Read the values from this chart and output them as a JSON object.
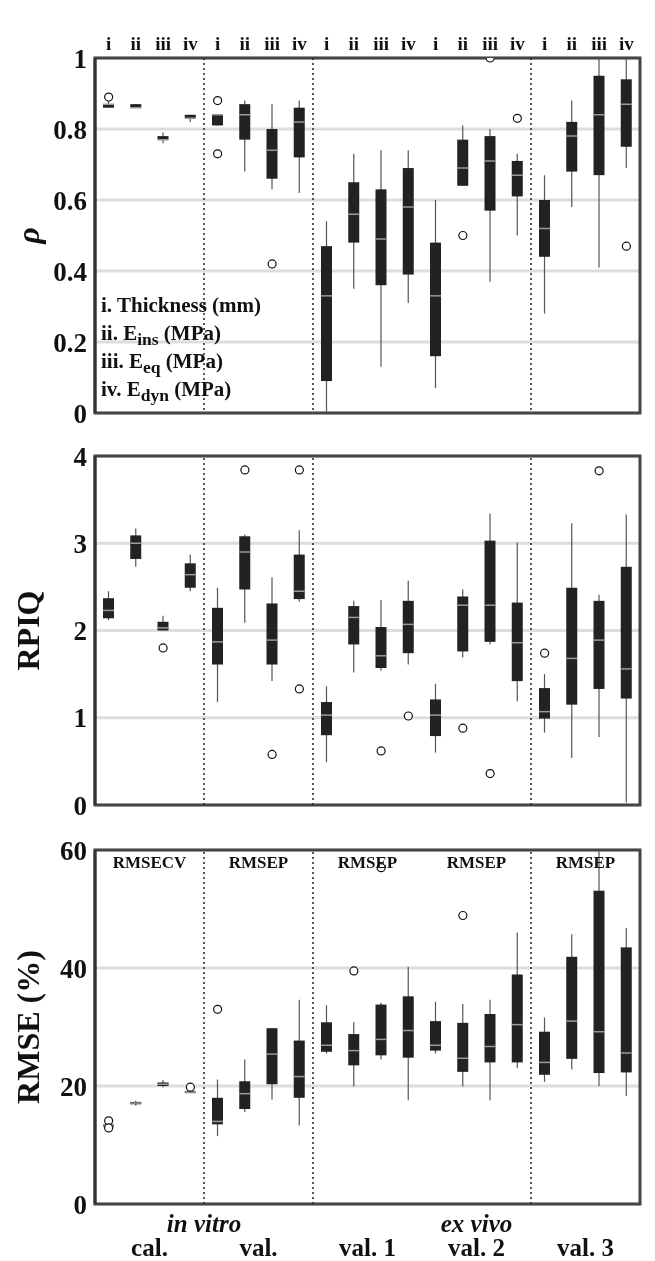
{
  "chart_data": [
    {
      "type": "box",
      "ylabel": "ρ",
      "color": "#222222",
      "grid": "y",
      "categories": [
        "i",
        "ii",
        "iii",
        "iv",
        "i",
        "ii",
        "iii",
        "iv",
        "i",
        "ii",
        "iii",
        "iv",
        "i",
        "ii",
        "iii",
        "iv",
        "i",
        "ii",
        "iii",
        "iv"
      ],
      "ylim": [
        0,
        1
      ],
      "yticks": [
        0,
        0.2,
        0.4,
        0.6,
        0.8,
        1
      ],
      "annotations": [
        "i. Thickness (mm)",
        "ii.  E$_{ins}$ (MPa)",
        "iii. E$_{eq}$ (MPa)",
        "iv. E$_{dyn}$ (MPa)"
      ],
      "boxes": [
        {
          "low": 0.86,
          "q1": 0.86,
          "median": 0.87,
          "q3": 0.87,
          "high": 0.88,
          "outliers": [
            0.89
          ]
        },
        {
          "low": 0.86,
          "q1": 0.86,
          "median": 0.86,
          "q3": 0.87,
          "high": 0.87
        },
        {
          "low": 0.76,
          "q1": 0.77,
          "median": 0.77,
          "q3": 0.78,
          "high": 0.79
        },
        {
          "low": 0.82,
          "q1": 0.83,
          "median": 0.83,
          "q3": 0.84,
          "high": 0.84
        },
        {
          "low": 0.81,
          "q1": 0.81,
          "median": 0.84,
          "q3": 0.84,
          "high": 0.84,
          "outliers": [
            0.88,
            0.73
          ]
        },
        {
          "low": 0.68,
          "q1": 0.77,
          "median": 0.84,
          "q3": 0.87,
          "high": 0.88
        },
        {
          "low": 0.63,
          "q1": 0.66,
          "median": 0.74,
          "q3": 0.8,
          "high": 0.87,
          "outliers": [
            0.42
          ]
        },
        {
          "low": 0.62,
          "q1": 0.72,
          "median": 0.82,
          "q3": 0.86,
          "high": 0.88
        },
        {
          "low": 0,
          "q1": 0.09,
          "median": 0.33,
          "q3": 0.47,
          "high": 0.54
        },
        {
          "low": 0.35,
          "q1": 0.48,
          "median": 0.56,
          "q3": 0.65,
          "high": 0.73
        },
        {
          "low": 0.13,
          "q1": 0.36,
          "median": 0.49,
          "q3": 0.63,
          "high": 0.74
        },
        {
          "low": 0.31,
          "q1": 0.39,
          "median": 0.58,
          "q3": 0.69,
          "high": 0.74
        },
        {
          "low": 0.07,
          "q1": 0.16,
          "median": 0.33,
          "q3": 0.48,
          "high": 0.6
        },
        {
          "low": 0.64,
          "q1": 0.64,
          "median": 0.69,
          "q3": 0.77,
          "high": 0.81,
          "outliers": [
            0.5
          ]
        },
        {
          "low": 0.37,
          "q1": 0.57,
          "median": 0.71,
          "q3": 0.78,
          "high": 0.8,
          "outliers": [
            1.0
          ]
        },
        {
          "low": 0.5,
          "q1": 0.61,
          "median": 0.67,
          "q3": 0.71,
          "high": 0.73,
          "outliers": [
            0.83
          ]
        },
        {
          "low": 0.28,
          "q1": 0.44,
          "median": 0.52,
          "q3": 0.6,
          "high": 0.67
        },
        {
          "low": 0.58,
          "q1": 0.68,
          "median": 0.78,
          "q3": 0.82,
          "high": 0.88
        },
        {
          "low": 0.41,
          "q1": 0.67,
          "median": 0.84,
          "q3": 0.95,
          "high": 1.0
        },
        {
          "low": 0.69,
          "q1": 0.75,
          "median": 0.87,
          "q3": 0.94,
          "high": 1.0,
          "outliers": [
            0.47
          ]
        }
      ]
    },
    {
      "type": "box",
      "ylabel": "RPIQ",
      "color": "#222222",
      "grid": "y",
      "categories": [
        null,
        null,
        null,
        null,
        null,
        null,
        null,
        null,
        null,
        null,
        null,
        null,
        null,
        null,
        null,
        null,
        null,
        null,
        null,
        null
      ],
      "ylim": [
        0,
        4
      ],
      "yticks": [
        0,
        1,
        2,
        3,
        4
      ],
      "boxes": [
        {
          "low": 2.12,
          "q1": 2.14,
          "median": 2.23,
          "q3": 2.37,
          "high": 2.45
        },
        {
          "low": 2.73,
          "q1": 2.82,
          "median": 3.0,
          "q3": 3.09,
          "high": 3.17
        },
        {
          "low": 2.0,
          "q1": 2.0,
          "median": 2.03,
          "q3": 2.1,
          "high": 2.17,
          "outliers": [
            1.8
          ]
        },
        {
          "low": 2.45,
          "q1": 2.49,
          "median": 2.64,
          "q3": 2.77,
          "high": 2.87
        },
        {
          "low": 1.18,
          "q1": 1.61,
          "median": 1.87,
          "q3": 2.26,
          "high": 2.49
        },
        {
          "low": 2.09,
          "q1": 2.47,
          "median": 2.9,
          "q3": 3.08,
          "high": 3.1,
          "outliers": [
            3.84
          ]
        },
        {
          "low": 1.42,
          "q1": 1.61,
          "median": 1.89,
          "q3": 2.31,
          "high": 2.61,
          "outliers": [
            0.58
          ]
        },
        {
          "low": 2.33,
          "q1": 2.36,
          "median": 2.45,
          "q3": 2.87,
          "high": 3.15,
          "outliers": [
            3.84,
            1.33
          ]
        },
        {
          "low": 0.49,
          "q1": 0.8,
          "median": 1.03,
          "q3": 1.18,
          "high": 1.36
        },
        {
          "low": 1.52,
          "q1": 1.84,
          "median": 2.15,
          "q3": 2.28,
          "high": 2.34
        },
        {
          "low": 1.54,
          "q1": 1.57,
          "median": 1.71,
          "q3": 2.04,
          "high": 2.35,
          "outliers": [
            0.62
          ]
        },
        {
          "low": 1.61,
          "q1": 1.74,
          "median": 2.07,
          "q3": 2.34,
          "high": 2.57,
          "outliers": [
            1.02
          ]
        },
        {
          "low": 0.6,
          "q1": 0.79,
          "median": 1.03,
          "q3": 1.21,
          "high": 1.39
        },
        {
          "low": 1.69,
          "q1": 1.76,
          "median": 2.29,
          "q3": 2.39,
          "high": 2.47,
          "outliers": [
            0.88
          ]
        },
        {
          "low": 1.84,
          "q1": 1.87,
          "median": 2.29,
          "q3": 3.03,
          "high": 3.34,
          "outliers": [
            0.36
          ]
        },
        {
          "low": 1.19,
          "q1": 1.42,
          "median": 1.86,
          "q3": 2.32,
          "high": 3.01
        },
        {
          "low": 0.83,
          "q1": 0.99,
          "median": 1.07,
          "q3": 1.34,
          "high": 1.5,
          "outliers": [
            1.74
          ]
        },
        {
          "low": 0.54,
          "q1": 1.15,
          "median": 1.68,
          "q3": 2.49,
          "high": 3.23
        },
        {
          "low": 0.78,
          "q1": 1.33,
          "median": 1.89,
          "q3": 2.34,
          "high": 2.41,
          "outliers": [
            3.83
          ]
        },
        {
          "low": 0.03,
          "q1": 1.22,
          "median": 1.56,
          "q3": 2.73,
          "high": 3.33
        }
      ]
    },
    {
      "type": "box",
      "ylabel": "RMSE (%)",
      "color": "#222222",
      "grid": "y",
      "categories": [
        null,
        null,
        null,
        null,
        null,
        null,
        null,
        null,
        null,
        null,
        null,
        null,
        null,
        null,
        null,
        null,
        null,
        null,
        null,
        null
      ],
      "ylim": [
        0,
        60
      ],
      "yticks": [
        0,
        20,
        40,
        60
      ],
      "annotations": [
        "RMSECV",
        "RMSEP",
        "RMSEP",
        "RMSEP",
        "RMSEP",
        "in vitro",
        "ex vivo",
        "cal.",
        "val.",
        "val. 1",
        "val. 2",
        "val. 3"
      ],
      "boxes": [
        {
          "low": 13.1,
          "q1": 13.1,
          "median": 13.3,
          "q3": 13.5,
          "high": 13.5,
          "outliers": [
            14.1,
            12.9
          ]
        },
        {
          "low": 16.7,
          "q1": 16.9,
          "median": 17.1,
          "q3": 17.3,
          "high": 17.5
        },
        {
          "low": 19.8,
          "q1": 20.0,
          "median": 20.3,
          "q3": 20.6,
          "high": 21.0
        },
        {
          "low": 18.8,
          "q1": 18.8,
          "median": 18.9,
          "q3": 19.1,
          "high": 19.1,
          "outliers": [
            19.8
          ]
        },
        {
          "low": 11.5,
          "q1": 13.5,
          "median": 14.0,
          "q3": 18.0,
          "high": 21.1,
          "outliers": [
            33.0
          ]
        },
        {
          "low": 15.6,
          "q1": 16.1,
          "median": 18.7,
          "q3": 20.8,
          "high": 24.5
        },
        {
          "low": 17.7,
          "q1": 20.3,
          "median": 25.4,
          "q3": 29.8,
          "high": 29.8
        },
        {
          "low": 13.3,
          "q1": 18.0,
          "median": 21.6,
          "q3": 27.7,
          "high": 34.6
        },
        {
          "low": 25.5,
          "q1": 25.8,
          "median": 26.9,
          "q3": 30.8,
          "high": 33.7
        },
        {
          "low": 19.9,
          "q1": 23.5,
          "median": 26.0,
          "q3": 28.8,
          "high": 30.8,
          "outliers": [
            39.5
          ]
        },
        {
          "low": 24.5,
          "q1": 25.2,
          "median": 27.9,
          "q3": 33.8,
          "high": 34.1,
          "outliers": [
            57.0
          ]
        },
        {
          "low": 17.6,
          "q1": 24.8,
          "median": 29.4,
          "q3": 35.2,
          "high": 40.2
        },
        {
          "low": 25.5,
          "q1": 26.0,
          "median": 26.9,
          "q3": 31.0,
          "high": 34.3
        },
        {
          "low": 19.9,
          "q1": 22.4,
          "median": 24.7,
          "q3": 30.7,
          "high": 33.9,
          "outliers": [
            48.9
          ]
        },
        {
          "low": 17.6,
          "q1": 24.0,
          "median": 26.7,
          "q3": 32.2,
          "high": 34.6
        },
        {
          "low": 23.0,
          "q1": 24.0,
          "median": 30.4,
          "q3": 38.9,
          "high": 46.0
        },
        {
          "low": 20.7,
          "q1": 21.9,
          "median": 24.0,
          "q3": 29.2,
          "high": 31.6
        },
        {
          "low": 22.8,
          "q1": 24.6,
          "median": 31.0,
          "q3": 41.9,
          "high": 45.7
        },
        {
          "low": 20.0,
          "q1": 22.2,
          "median": 29.2,
          "q3": 53.1,
          "high": 59.8
        },
        {
          "low": 18.3,
          "q1": 22.3,
          "median": 25.6,
          "q3": 43.5,
          "high": 46.8
        }
      ]
    }
  ]
}
